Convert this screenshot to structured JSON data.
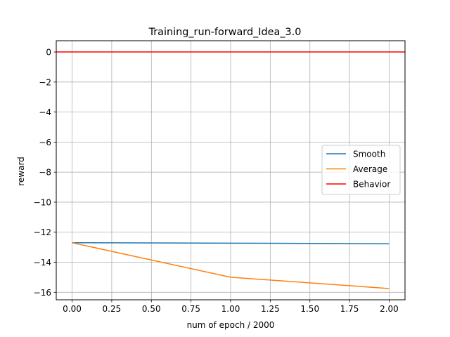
{
  "chart_data": {
    "type": "line",
    "title": "Training_run-forward_Idea_3.0",
    "xlabel": "num of epoch / 2000",
    "ylabel": "reward",
    "xlim": [
      -0.1,
      2.1
    ],
    "ylim": [
      -16.5,
      0.75
    ],
    "x_ticks": [
      0.0,
      0.25,
      0.5,
      0.75,
      1.0,
      1.25,
      1.5,
      1.75,
      2.0
    ],
    "x_tick_labels": [
      "0.00",
      "0.25",
      "0.50",
      "0.75",
      "1.00",
      "1.25",
      "1.50",
      "1.75",
      "2.00"
    ],
    "y_ticks": [
      0,
      -2,
      -4,
      -6,
      -8,
      -10,
      -12,
      -14,
      -16
    ],
    "y_tick_labels": [
      "0",
      "−2",
      "−4",
      "−6",
      "−8",
      "−10",
      "−12",
      "−14",
      "−16"
    ],
    "grid": true,
    "legend_position": "center-right",
    "series": [
      {
        "name": "Smooth",
        "color": "#1f77b4",
        "x": [
          0,
          1,
          2
        ],
        "y": [
          -12.7,
          -12.73,
          -12.77
        ]
      },
      {
        "name": "Average",
        "color": "#ff7f0e",
        "x": [
          0,
          1,
          2
        ],
        "y": [
          -12.7,
          -15.0,
          -15.75
        ]
      },
      {
        "name": "Behavior",
        "color": "#ff0000",
        "type": "hline",
        "y": 0
      }
    ]
  }
}
